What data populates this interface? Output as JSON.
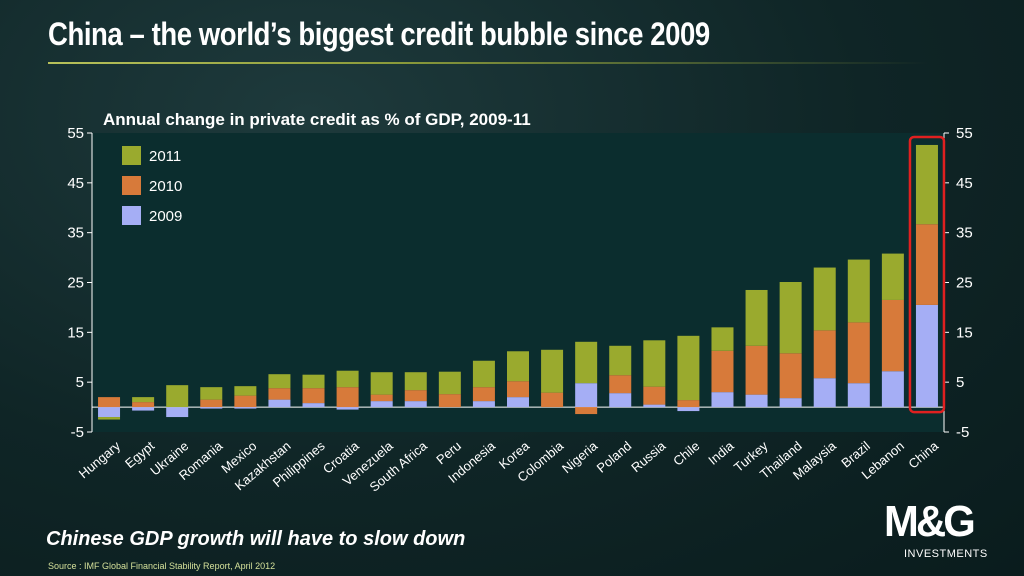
{
  "slide": {
    "title": "China – the world’s biggest credit bubble since 2009",
    "subtitle": "Chinese GDP growth will have to slow down",
    "source": "Source : IMF Global Financial Stability Report, April 2012"
  },
  "logo": {
    "name": "M&G",
    "tagline": "INVESTMENTS"
  },
  "colors": {
    "2011": "#9aaa2e",
    "2010": "#d77a3a",
    "2009": "#a5aef5",
    "plot_bg": "#0b2d2e",
    "highlight": "#e02020"
  },
  "chart_data": {
    "type": "bar",
    "stacked": true,
    "title": "Annual change in private credit as % of GDP, 2009-11",
    "ylim": [
      -5,
      55
    ],
    "yticks": [
      -5,
      5,
      15,
      25,
      35,
      45,
      55
    ],
    "legend_position": "top-left",
    "highlighted_category": "China",
    "categories": [
      "Hungary",
      "Egypt",
      "Ukraine",
      "Romania",
      "Mexico",
      "Kazakhstan",
      "Philippines",
      "Croatia",
      "Venezuela",
      "South Africa",
      "Peru",
      "Indonesia",
      "Korea",
      "Colombia",
      "Nigeria",
      "Poland",
      "Russia",
      "Chile",
      "India",
      "Turkey",
      "Thailand",
      "Malaysia",
      "Brazil",
      "Lebanon",
      "China"
    ],
    "series": [
      {
        "name": "2009",
        "values": [
          -2.0,
          -0.7,
          -2.0,
          -0.3,
          -0.3,
          1.5,
          0.8,
          -0.5,
          1.2,
          1.2,
          0,
          1.2,
          2.0,
          0,
          4.8,
          2.8,
          0.5,
          -0.8,
          3.0,
          2.5,
          1.8,
          5.8,
          4.8,
          7.2,
          20.5
        ]
      },
      {
        "name": "2010",
        "values": [
          2.0,
          1.0,
          0,
          1.5,
          2.3,
          2.3,
          3.0,
          4.0,
          1.3,
          2.2,
          2.6,
          2.8,
          3.2,
          2.9,
          -1.4,
          3.6,
          3.6,
          1.4,
          8.3,
          9.8,
          9.0,
          9.6,
          12.2,
          14.3,
          16.2
        ]
      },
      {
        "name": "2011",
        "values": [
          -0.5,
          1.0,
          4.4,
          2.5,
          1.9,
          2.8,
          2.7,
          3.3,
          4.5,
          3.6,
          4.5,
          5.3,
          6.0,
          8.6,
          8.3,
          5.9,
          9.3,
          12.9,
          4.7,
          11.2,
          14.3,
          12.6,
          12.6,
          9.3,
          15.9
        ]
      }
    ]
  }
}
